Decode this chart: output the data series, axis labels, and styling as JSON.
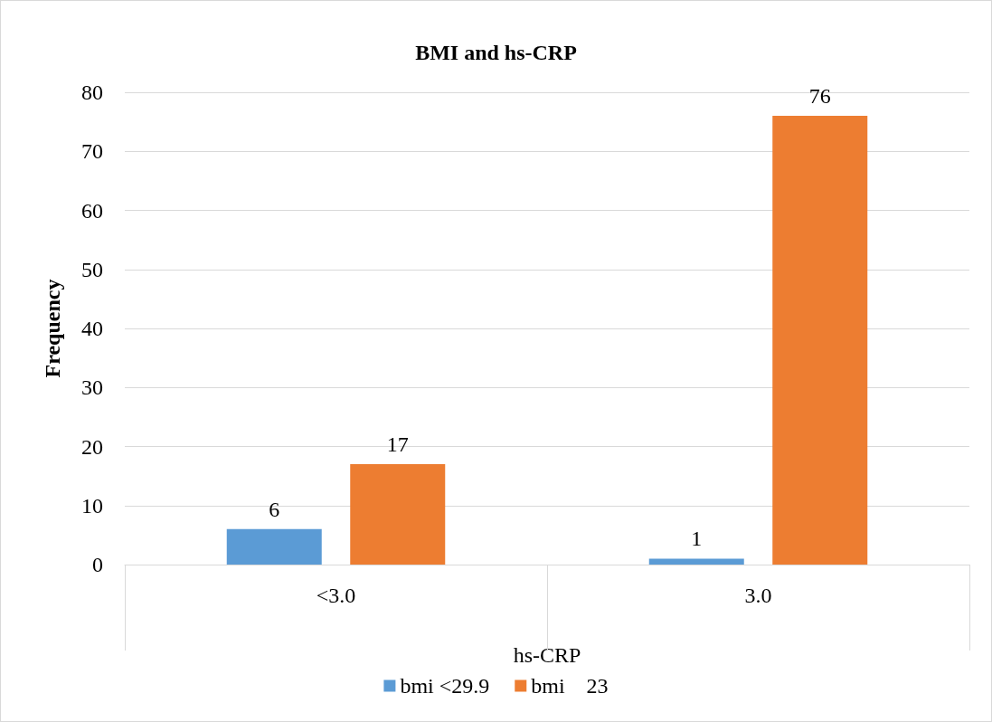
{
  "chart_data": {
    "type": "bar",
    "title": "BMI and hs-CRP",
    "xlabel": "hs-CRP",
    "ylabel": "Frequency",
    "categories": [
      "<3.0",
      "3.0"
    ],
    "series": [
      {
        "name": "bmi <29.9",
        "color": "#5b9bd5",
        "values": [
          6,
          1
        ]
      },
      {
        "name": "bmi    23",
        "color": "#ed7d31",
        "values": [
          17,
          76
        ]
      }
    ],
    "ylim": [
      0,
      80
    ],
    "yticks": [
      0,
      10,
      20,
      30,
      40,
      50,
      60,
      70,
      80
    ],
    "grid": "y",
    "legend": "bottom",
    "data_labels": true
  }
}
